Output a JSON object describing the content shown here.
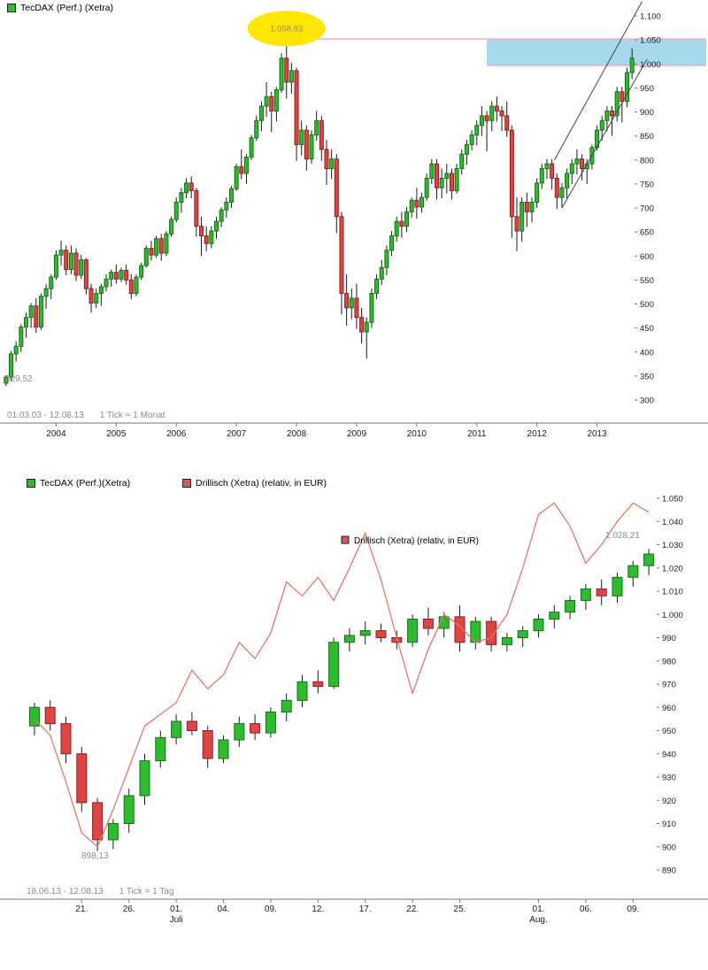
{
  "colors": {
    "up": "#2fbb2f",
    "up_border": "#157015",
    "down": "#e04545",
    "down_border": "#8c1f1f",
    "wick": "#1a1a1a",
    "line": "#e5756b",
    "pink": "#f2a6c8",
    "box": "#a5d9eb",
    "yellow": "#ffe600",
    "channel": "#444444",
    "axis": "#777777",
    "axis_text": "#1a1a1a",
    "muted": "#8c8c8c",
    "tecdax_swatch": "#2fbb2f",
    "drillisch_swatch": "#cd5c5c"
  },
  "chart_data": [
    {
      "type": "candlestick",
      "title": "TecDAX (Perf.) (Xetra)",
      "period": "01.03.03 - 12.08.13",
      "tick_note": "1 Tick = 1 Monat",
      "ylim": [
        300,
        1100
      ],
      "y_ticks": [
        {
          "v": 1100,
          "label": "1.100"
        },
        {
          "v": 1050,
          "label": "1.050"
        },
        {
          "v": 1000,
          "label": "1.000"
        },
        {
          "v": 950,
          "label": "950"
        },
        {
          "v": 900,
          "label": "900"
        },
        {
          "v": 850,
          "label": "850"
        },
        {
          "v": 800,
          "label": "800"
        },
        {
          "v": 750,
          "label": "750"
        },
        {
          "v": 700,
          "label": "700"
        },
        {
          "v": 650,
          "label": "650"
        },
        {
          "v": 600,
          "label": "600"
        },
        {
          "v": 550,
          "label": "550"
        },
        {
          "v": 500,
          "label": "500"
        },
        {
          "v": 450,
          "label": "450"
        },
        {
          "v": 400,
          "label": "400"
        },
        {
          "v": 350,
          "label": "350"
        },
        {
          "v": 300,
          "label": "300"
        }
      ],
      "x_ticks": [
        {
          "i": 10,
          "label": "2004"
        },
        {
          "i": 22,
          "label": "2005"
        },
        {
          "i": 34,
          "label": "2006"
        },
        {
          "i": 46,
          "label": "2007"
        },
        {
          "i": 58,
          "label": "2008"
        },
        {
          "i": 70,
          "label": "2009"
        },
        {
          "i": 82,
          "label": "2010"
        },
        {
          "i": 94,
          "label": "2011"
        },
        {
          "i": 106,
          "label": "2012"
        },
        {
          "i": 118,
          "label": "2013"
        }
      ],
      "candles": [
        [
          335,
          352,
          329.52,
          348
        ],
        [
          348,
          402,
          340,
          396
        ],
        [
          396,
          422,
          380,
          412
        ],
        [
          412,
          458,
          400,
          452
        ],
        [
          452,
          482,
          430,
          472
        ],
        [
          472,
          502,
          450,
          496
        ],
        [
          496,
          512,
          440,
          452
        ],
        [
          452,
          522,
          446,
          516
        ],
        [
          516,
          542,
          490,
          532
        ],
        [
          532,
          562,
          510,
          556
        ],
        [
          556,
          612,
          550,
          602
        ],
        [
          602,
          632,
          580,
          612
        ],
        [
          612,
          622,
          560,
          572
        ],
        [
          572,
          622,
          562,
          606
        ],
        [
          606,
          616,
          548,
          560
        ],
        [
          560,
          602,
          552,
          592
        ],
        [
          592,
          596,
          520,
          532
        ],
        [
          532,
          542,
          482,
          502
        ],
        [
          502,
          532,
          492,
          522
        ],
        [
          522,
          542,
          496,
          536
        ],
        [
          536,
          562,
          526,
          552
        ],
        [
          552,
          572,
          536,
          566
        ],
        [
          566,
          582,
          542,
          552
        ],
        [
          552,
          576,
          546,
          570
        ],
        [
          570,
          582,
          540,
          550
        ],
        [
          550,
          562,
          510,
          522
        ],
        [
          522,
          562,
          516,
          556
        ],
        [
          556,
          586,
          550,
          580
        ],
        [
          580,
          622,
          576,
          616
        ],
        [
          616,
          632,
          590,
          602
        ],
        [
          602,
          642,
          596,
          636
        ],
        [
          636,
          646,
          590,
          606
        ],
        [
          606,
          652,
          600,
          646
        ],
        [
          646,
          682,
          640,
          676
        ],
        [
          676,
          722,
          670,
          712
        ],
        [
          712,
          742,
          690,
          732
        ],
        [
          732,
          762,
          720,
          752
        ],
        [
          752,
          766,
          720,
          736
        ],
        [
          736,
          742,
          640,
          662
        ],
        [
          662,
          682,
          600,
          642
        ],
        [
          642,
          662,
          610,
          626
        ],
        [
          626,
          662,
          616,
          652
        ],
        [
          652,
          682,
          636,
          672
        ],
        [
          672,
          702,
          660,
          696
        ],
        [
          696,
          722,
          680,
          712
        ],
        [
          712,
          746,
          700,
          740
        ],
        [
          740,
          792,
          735,
          786
        ],
        [
          786,
          822,
          760,
          772
        ],
        [
          772,
          812,
          750,
          806
        ],
        [
          806,
          852,
          800,
          846
        ],
        [
          846,
          892,
          840,
          882
        ],
        [
          882,
          922,
          860,
          912
        ],
        [
          912,
          962,
          890,
          932
        ],
        [
          932,
          942,
          858,
          902
        ],
        [
          902,
          952,
          880,
          946
        ],
        [
          946,
          1022,
          940,
          1012
        ],
        [
          1012,
          1058.93,
          928,
          962
        ],
        [
          962,
          1002,
          938,
          986
        ],
        [
          986,
          992,
          798,
          832
        ],
        [
          832,
          882,
          810,
          862
        ],
        [
          862,
          872,
          778,
          802
        ],
        [
          802,
          862,
          792,
          852
        ],
        [
          852,
          902,
          840,
          882
        ],
        [
          882,
          892,
          798,
          822
        ],
        [
          822,
          842,
          748,
          782
        ],
        [
          782,
          822,
          760,
          802
        ],
        [
          802,
          812,
          648,
          682
        ],
        [
          682,
          692,
          478,
          522
        ],
        [
          522,
          562,
          455,
          492
        ],
        [
          492,
          532,
          468,
          512
        ],
        [
          512,
          542,
          448,
          472
        ],
        [
          472,
          492,
          418,
          442
        ],
        [
          442,
          472,
          386,
          462
        ],
        [
          462,
          532,
          450,
          522
        ],
        [
          522,
          562,
          510,
          552
        ],
        [
          552,
          592,
          540,
          576
        ],
        [
          576,
          622,
          560,
          612
        ],
        [
          612,
          652,
          600,
          642
        ],
        [
          642,
          682,
          630,
          672
        ],
        [
          672,
          692,
          638,
          662
        ],
        [
          662,
          702,
          650,
          692
        ],
        [
          692,
          722,
          680,
          716
        ],
        [
          716,
          742,
          678,
          702
        ],
        [
          702,
          732,
          690,
          722
        ],
        [
          722,
          772,
          715,
          762
        ],
        [
          762,
          802,
          750,
          792
        ],
        [
          792,
          802,
          718,
          742
        ],
        [
          742,
          782,
          720,
          762
        ],
        [
          762,
          792,
          730,
          772
        ],
        [
          772,
          782,
          718,
          736
        ],
        [
          736,
          792,
          730,
          782
        ],
        [
          782,
          822,
          770,
          812
        ],
        [
          812,
          842,
          790,
          832
        ],
        [
          832,
          862,
          820,
          852
        ],
        [
          852,
          882,
          830,
          872
        ],
        [
          872,
          912,
          850,
          892
        ],
        [
          892,
          902,
          818,
          882
        ],
        [
          882,
          922,
          860,
          912
        ],
        [
          912,
          932,
          880,
          902
        ],
        [
          902,
          912,
          860,
          892
        ],
        [
          892,
          922,
          848,
          862
        ],
        [
          862,
          872,
          638,
          682
        ],
        [
          682,
          722,
          610,
          652
        ],
        [
          652,
          722,
          630,
          712
        ],
        [
          712,
          732,
          660,
          692
        ],
        [
          692,
          722,
          670,
          712
        ],
        [
          712,
          762,
          700,
          752
        ],
        [
          752,
          792,
          740,
          782
        ],
        [
          782,
          802,
          760,
          792
        ],
        [
          792,
          802,
          738,
          762
        ],
        [
          762,
          772,
          698,
          722
        ],
        [
          722,
          752,
          700,
          742
        ],
        [
          742,
          782,
          720,
          772
        ],
        [
          772,
          802,
          750,
          792
        ],
        [
          792,
          822,
          770,
          802
        ],
        [
          802,
          812,
          758,
          782
        ],
        [
          782,
          802,
          750,
          792
        ],
        [
          792,
          832,
          780,
          826
        ],
        [
          826,
          872,
          820,
          862
        ],
        [
          862,
          892,
          840,
          882
        ],
        [
          882,
          912,
          860,
          902
        ],
        [
          902,
          912,
          850,
          892
        ],
        [
          892,
          952,
          880,
          942
        ],
        [
          942,
          952,
          878,
          922
        ],
        [
          922,
          992,
          910,
          982
        ],
        [
          982,
          1032,
          968,
          1012
        ]
      ],
      "annotations": {
        "low_label": {
          "text": "329,52",
          "index": 0,
          "value": 329.52
        },
        "peak": {
          "text": "1.058,93",
          "index": 56,
          "value": 1058.93
        },
        "hlines": [
          {
            "value": 1052,
            "from_index": 50
          },
          {
            "value": 997,
            "from_index": 96
          }
        ],
        "box": {
          "top": 1052,
          "bottom": 997,
          "from_index": 96
        },
        "channel": [
          {
            "i1": 109.5,
            "v1": 800,
            "i2": 127,
            "v2": 1130
          },
          {
            "i1": 111,
            "v1": 700,
            "i2": 128,
            "v2": 1010
          }
        ]
      }
    },
    {
      "type": "candlestick+line",
      "title": "TecDAX (Perf.)(Xetra)",
      "series2_label": "Drillisch (Xetra) (relativ, in EUR)",
      "period": "18.06.13 - 12.08.13",
      "tick_note": "1 Tick = 1 Tag",
      "ylim": [
        890,
        1050
      ],
      "y_ticks": [
        {
          "v": 1050,
          "label": "1.050"
        },
        {
          "v": 1040,
          "label": "1.040"
        },
        {
          "v": 1030,
          "label": "1.030"
        },
        {
          "v": 1020,
          "label": "1.020"
        },
        {
          "v": 1010,
          "label": "1.010"
        },
        {
          "v": 1000,
          "label": "1.000"
        },
        {
          "v": 990,
          "label": "990"
        },
        {
          "v": 980,
          "label": "980"
        },
        {
          "v": 970,
          "label": "970"
        },
        {
          "v": 960,
          "label": "960"
        },
        {
          "v": 950,
          "label": "950"
        },
        {
          "v": 940,
          "label": "940"
        },
        {
          "v": 930,
          "label": "930"
        },
        {
          "v": 920,
          "label": "920"
        },
        {
          "v": 910,
          "label": "910"
        },
        {
          "v": 900,
          "label": "900"
        },
        {
          "v": 890,
          "label": "890"
        }
      ],
      "x_ticks": [
        {
          "i": 3,
          "label": "21."
        },
        {
          "i": 6,
          "label": "26."
        },
        {
          "i": 9,
          "label": "01."
        },
        {
          "i": 12,
          "label": "04."
        },
        {
          "i": 15,
          "label": "09."
        },
        {
          "i": 18,
          "label": "12."
        },
        {
          "i": 21,
          "label": "17."
        },
        {
          "i": 24,
          "label": "22."
        },
        {
          "i": 27,
          "label": "25."
        },
        {
          "i": 32,
          "label": "01."
        },
        {
          "i": 35,
          "label": "06."
        },
        {
          "i": 38,
          "label": "09."
        }
      ],
      "month_ticks": [
        {
          "i": 9,
          "label": "Juli"
        },
        {
          "i": 32,
          "label": "Aug."
        }
      ],
      "candles": [
        [
          952,
          962,
          948,
          960
        ],
        [
          960,
          963,
          950,
          953
        ],
        [
          953,
          956,
          936,
          940
        ],
        [
          940,
          943,
          915,
          919
        ],
        [
          919,
          921,
          898.13,
          903
        ],
        [
          903,
          912,
          899,
          910
        ],
        [
          910,
          925,
          906,
          922
        ],
        [
          922,
          940,
          918,
          937
        ],
        [
          937,
          950,
          934,
          947
        ],
        [
          947,
          957,
          944,
          954
        ],
        [
          954,
          958,
          948,
          950
        ],
        [
          950,
          952,
          934,
          938
        ],
        [
          938,
          948,
          936,
          946
        ],
        [
          946,
          956,
          943,
          953
        ],
        [
          953,
          957,
          946,
          949
        ],
        [
          949,
          960,
          947,
          958
        ],
        [
          958,
          966,
          954,
          963
        ],
        [
          963,
          974,
          960,
          971
        ],
        [
          971,
          976,
          966,
          969
        ],
        [
          969,
          990,
          968,
          988
        ],
        [
          988,
          994,
          984,
          991
        ],
        [
          991,
          997,
          987,
          993
        ],
        [
          993,
          996,
          988,
          990
        ],
        [
          990,
          993,
          985,
          988
        ],
        [
          988,
          1000,
          986,
          998
        ],
        [
          998,
          1003,
          991,
          994
        ],
        [
          994,
          1001,
          990,
          999
        ],
        [
          999,
          1004,
          984,
          988
        ],
        [
          988,
          999,
          985,
          997
        ],
        [
          997,
          999,
          984,
          987
        ],
        [
          987,
          992,
          984,
          990
        ],
        [
          990,
          995,
          986,
          993
        ],
        [
          993,
          1000,
          990,
          998
        ],
        [
          998,
          1004,
          994,
          1001
        ],
        [
          1001,
          1008,
          998,
          1006
        ],
        [
          1006,
          1013,
          1002,
          1011
        ],
        [
          1011,
          1015,
          1004,
          1008
        ],
        [
          1008,
          1018,
          1005,
          1016
        ],
        [
          1016,
          1023,
          1012,
          1021
        ],
        [
          1021,
          1028.21,
          1017,
          1026
        ]
      ],
      "line_values": [
        955,
        948,
        928,
        906,
        900,
        916,
        934,
        952,
        957,
        962,
        976,
        968,
        974,
        988,
        981,
        992,
        1014,
        1008,
        1016,
        1006,
        1020,
        1035,
        1015,
        990,
        966,
        985,
        1000,
        995,
        988,
        990,
        1000,
        1020,
        1043,
        1048,
        1038,
        1022,
        1030,
        1040,
        1048,
        1044
      ],
      "annotations": {
        "low_label": {
          "text": "898,13",
          "index": 4,
          "value": 898.13
        },
        "high_label": {
          "text": "1.028,21",
          "index": 39,
          "value": 1028.21
        },
        "inner_legend": "Drillisch (Xetra) (relativ, in EUR)"
      }
    }
  ]
}
